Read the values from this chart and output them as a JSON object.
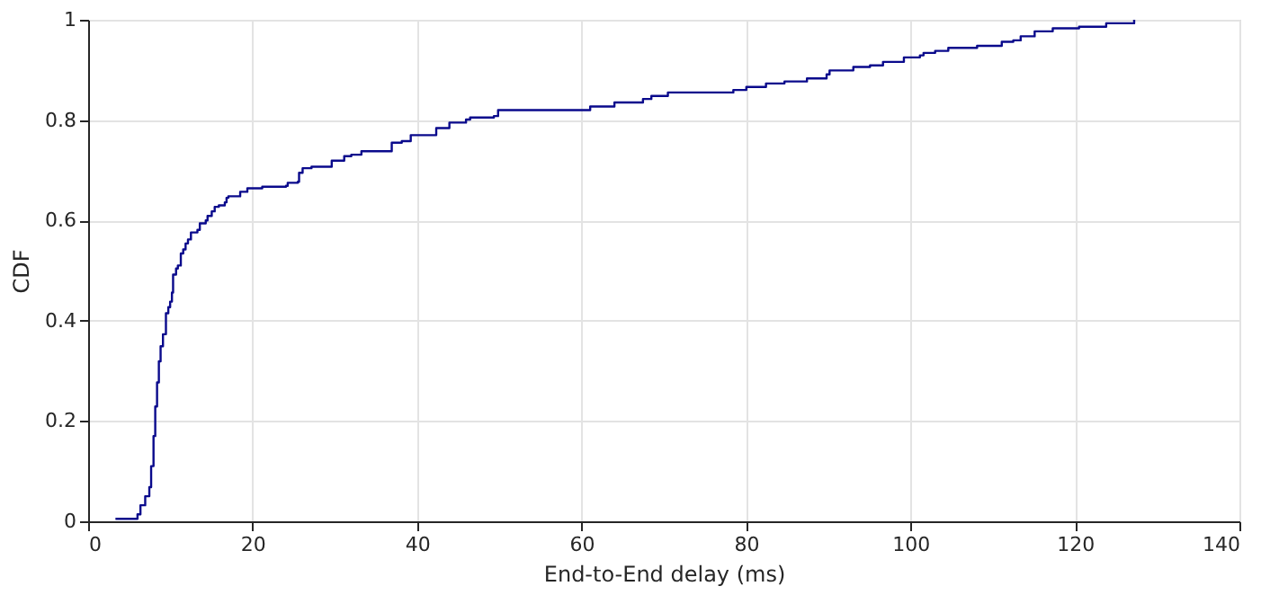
{
  "chart_data": {
    "type": "step",
    "xlabel": "End-to-End delay (ms)",
    "ylabel": "CDF",
    "x": [
      3.32,
      6.0,
      6.36,
      6.94,
      7.44,
      7.66,
      7.95,
      8.16,
      8.38,
      8.6,
      8.81,
      9.1,
      9.46,
      9.75,
      9.97,
      10.19,
      10.33,
      10.69,
      10.91,
      11.27,
      11.56,
      11.85,
      12.14,
      12.5,
      13.29,
      13.58,
      14.3,
      14.52,
      15.03,
      15.39,
      15.89,
      16.62,
      16.83,
      17.05,
      18.49,
      19.36,
      21.17,
      24.06,
      24.27,
      25.5,
      25.65,
      26.08,
      27.16,
      29.62,
      31.14,
      32.0,
      33.23,
      36.92,
      38.14,
      39.23,
      42.33,
      43.93,
      45.95,
      46.45,
      49.34,
      49.85,
      61.05,
      64.0,
      67.47,
      68.49,
      70.5,
      78.46,
      80.04,
      82.43,
      84.68,
      87.41,
      89.8,
      90.16,
      93.05,
      95.08,
      96.66,
      99.2,
      101.15,
      101.59,
      103.0,
      104.6,
      108.1,
      111.1,
      112.5,
      113.4,
      115.1,
      117.3,
      120.5,
      123.8,
      127.2
    ],
    "series": [
      {
        "color": "#0a0a8c",
        "values": [
          0.005,
          0.014,
          0.032,
          0.05,
          0.068,
          0.11,
          0.17,
          0.229,
          0.277,
          0.319,
          0.349,
          0.373,
          0.415,
          0.427,
          0.438,
          0.456,
          0.492,
          0.504,
          0.51,
          0.534,
          0.542,
          0.554,
          0.562,
          0.576,
          0.581,
          0.594,
          0.6,
          0.609,
          0.618,
          0.627,
          0.63,
          0.636,
          0.645,
          0.648,
          0.657,
          0.664,
          0.667,
          0.669,
          0.675,
          0.677,
          0.695,
          0.704,
          0.707,
          0.719,
          0.728,
          0.731,
          0.738,
          0.755,
          0.758,
          0.77,
          0.784,
          0.795,
          0.801,
          0.805,
          0.808,
          0.82,
          0.827,
          0.835,
          0.842,
          0.848,
          0.855,
          0.86,
          0.866,
          0.873,
          0.877,
          0.883,
          0.891,
          0.899,
          0.906,
          0.909,
          0.916,
          0.925,
          0.929,
          0.934,
          0.938,
          0.944,
          0.948,
          0.956,
          0.959,
          0.967,
          0.977,
          0.983,
          0.986,
          0.993,
          1.0
        ]
      }
    ],
    "xlim": [
      0,
      140
    ],
    "xticks": [
      0,
      20,
      40,
      60,
      80,
      100,
      120,
      140
    ],
    "ylim": [
      0,
      1
    ],
    "yticks": [
      0,
      0.2,
      0.4,
      0.6,
      0.8,
      1
    ],
    "grid": true,
    "line_style": "solid",
    "marker": "none"
  }
}
